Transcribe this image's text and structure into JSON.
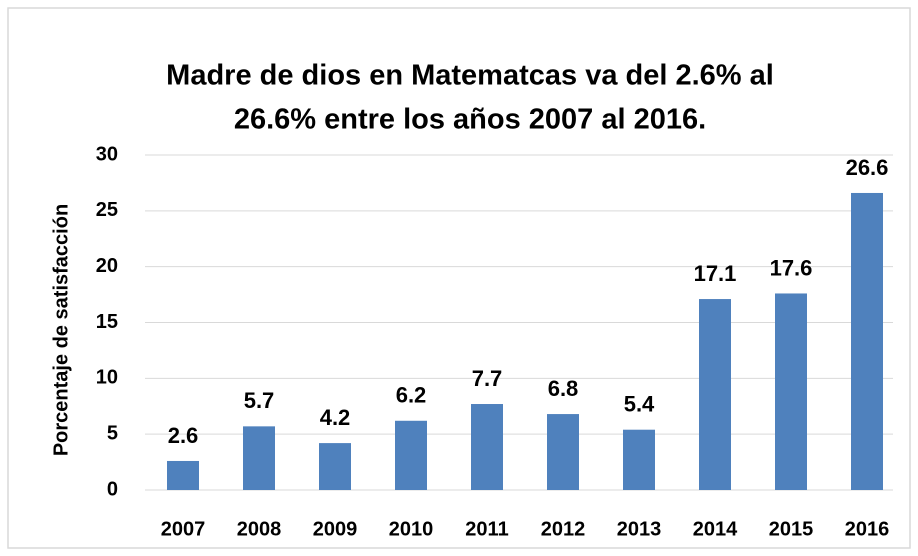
{
  "chart_data": {
    "type": "bar",
    "title": [
      "Madre de dios  en Matematcas va del 2.6% al",
      "26.6% entre los años 2007 al 2016."
    ],
    "y_label": "Porcentaje de satisfacción",
    "categories": [
      "2007",
      "2008",
      "2009",
      "2010",
      "2011",
      "2012",
      "2013",
      "2014",
      "2015",
      "2016"
    ],
    "values": [
      2.6,
      5.7,
      4.2,
      6.2,
      7.7,
      6.8,
      5.4,
      17.1,
      17.6,
      26.6
    ],
    "color": "#4f81bd",
    "ylim": [
      0,
      30
    ],
    "yticks": [
      0,
      5,
      10,
      15,
      20,
      25,
      30
    ],
    "grid": true
  }
}
